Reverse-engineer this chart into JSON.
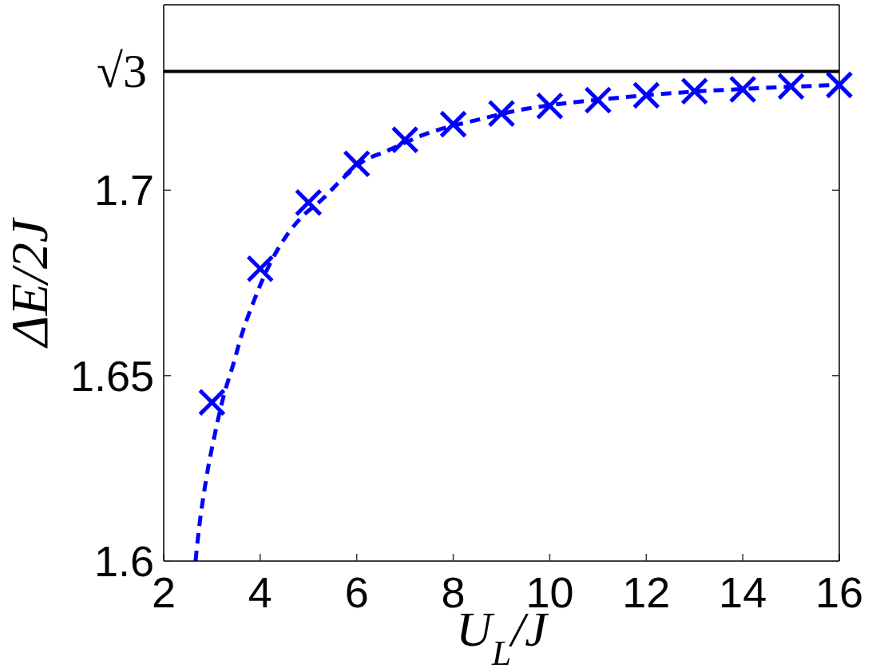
{
  "chart_data": {
    "type": "scatter",
    "xlabel": "U$_{L}$/J",
    "ylabel": "ΔE/2J",
    "xlim": [
      2,
      16
    ],
    "xticks": [
      2,
      4,
      6,
      8,
      10,
      12,
      14,
      16
    ],
    "ylim": [
      1.6,
      1.75
    ],
    "yticks": [
      1.6,
      1.65,
      1.7
    ],
    "series": [
      {
        "color": "#0000ff",
        "marker": "cross",
        "x": [
          3,
          4,
          5,
          6,
          7,
          8,
          9,
          10,
          11,
          12,
          13,
          14,
          15,
          16
        ],
        "values": [
          1.6428,
          1.6788,
          1.6967,
          1.7071,
          1.7136,
          1.7178,
          1.7207,
          1.7227,
          1.7243,
          1.7256,
          1.7267,
          1.7272,
          1.728,
          1.7284
        ]
      },
      {
        "type": "line",
        "color": "#0000ff",
        "marker": "none",
        "line_style": "dashed",
        "x": [
          2.66,
          2.71,
          2.88,
          3.05,
          3.24,
          3.44,
          3.63,
          3.85,
          4.18,
          4.57,
          4.9,
          5.23,
          5.78,
          6.11,
          6.61,
          7.44,
          8.54,
          9.37,
          10,
          11,
          12,
          13,
          14,
          15,
          16
        ],
        "values": [
          1.6,
          1.6063,
          1.6221,
          1.6336,
          1.6444,
          1.653,
          1.6616,
          1.6695,
          1.6796,
          1.6882,
          1.6933,
          1.6969,
          1.704,
          1.7076,
          1.7105,
          1.7152,
          1.7191,
          1.7216,
          1.7229,
          1.7244,
          1.7256,
          1.7266,
          1.7273,
          1.7279,
          1.7284
        ]
      }
    ],
    "ref_lines": [
      {
        "axis": "y",
        "value": 1.7320508,
        "label": "√3",
        "color": "#000000"
      }
    ]
  }
}
